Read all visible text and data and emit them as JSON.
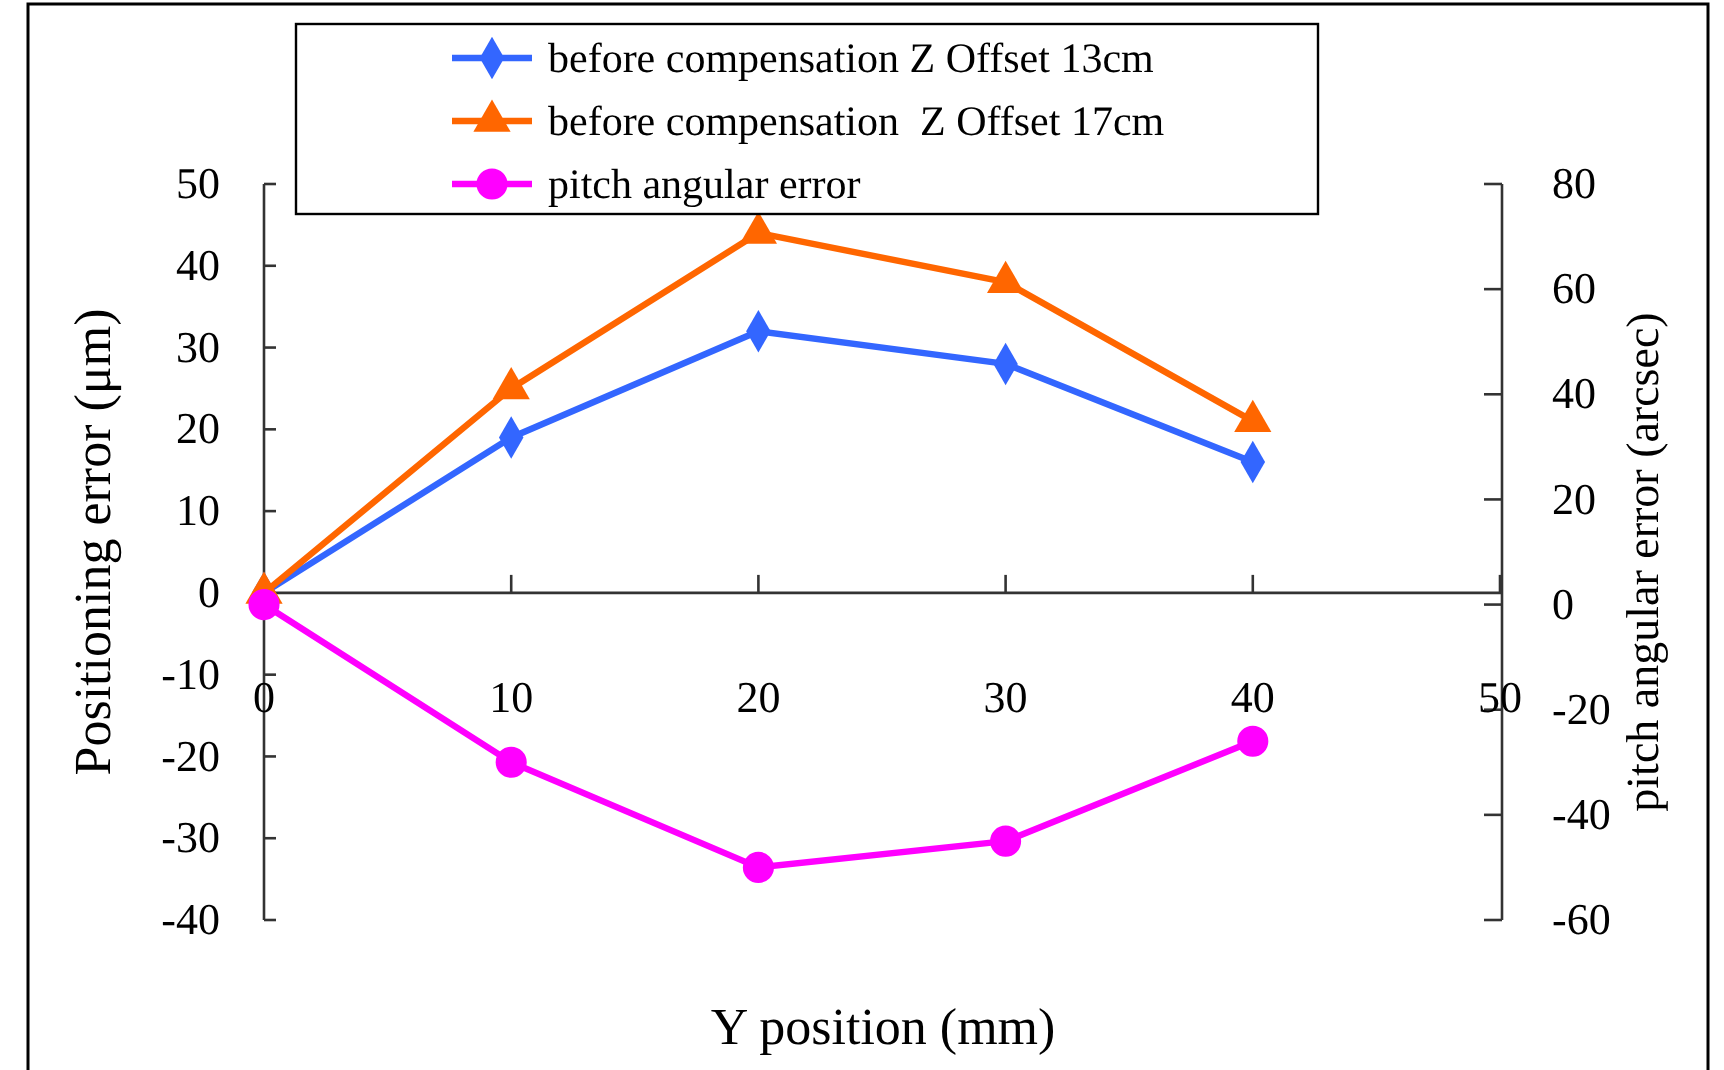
{
  "chart_data": {
    "type": "line",
    "xlabel": "Y position (mm)",
    "ylabel": "Positioning error (μm)",
    "y2label": "pitch angular error (arcsec)",
    "x": [
      0,
      10,
      20,
      30,
      40
    ],
    "xlim": [
      0,
      50
    ],
    "xticks": [
      0,
      10,
      20,
      30,
      40,
      50
    ],
    "ylim": [
      -40,
      50
    ],
    "yticks": [
      -40,
      -30,
      -20,
      -10,
      0,
      10,
      20,
      30,
      40,
      50
    ],
    "y2lim": [
      -60,
      80
    ],
    "y2ticks": [
      -60,
      -40,
      -20,
      0,
      20,
      40,
      60,
      80
    ],
    "legend": "top",
    "series": [
      {
        "name": "before compensation Z Offset 13cm",
        "color": "#3366ff",
        "marker": "diamond",
        "values": [
          0,
          19,
          32,
          28,
          16
        ]
      },
      {
        "name": "before compensation  Z Offset 17cm",
        "color": "#ff6600",
        "marker": "triangle",
        "values": [
          0,
          25,
          44,
          38,
          21
        ]
      },
      {
        "name": "pitch angular error",
        "color": "#ff00ff",
        "marker": "circle",
        "axis": "y2",
        "values": [
          0,
          -30,
          -50,
          -45,
          -26
        ]
      }
    ]
  }
}
